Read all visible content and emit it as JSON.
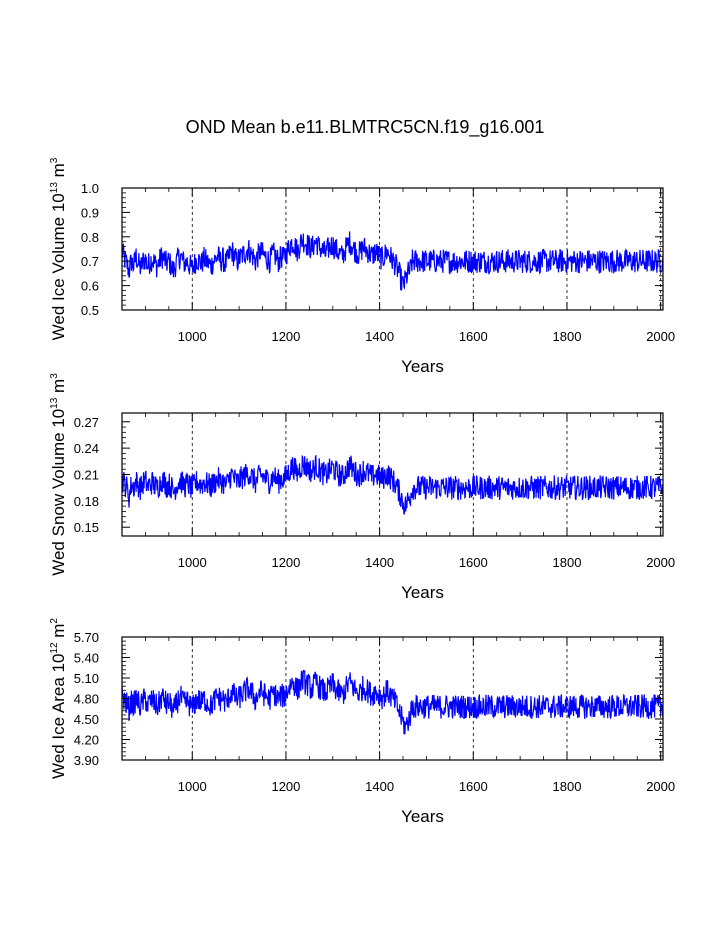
{
  "title": "OND Mean b.e11.BLMTRC5CN.f19_g16.001",
  "colors": {
    "series": "#0000ff",
    "axis": "#000000",
    "grid": "#000000"
  },
  "chart_data": [
    {
      "type": "line",
      "name": "ice-volume",
      "xlabel": "Years",
      "ylabel_prefix": "Wed Ice Volume 10",
      "ylabel_exp": "13",
      "ylabel_unit": " m",
      "ylabel_unit_exp": "3",
      "xlim": [
        850,
        2005
      ],
      "ylim": [
        0.5,
        1.0
      ],
      "xticks": [
        1000,
        1200,
        1400,
        1600,
        1800,
        2000
      ],
      "xtick_labels": [
        "1000",
        "1200",
        "1400",
        "1600",
        "1800",
        "2000"
      ],
      "yticks": [
        0.5,
        0.6,
        0.7,
        0.8,
        0.9,
        1.0
      ],
      "ytick_labels": [
        "0.5",
        "0.6",
        "0.7",
        "0.8",
        "0.9",
        "1.0"
      ],
      "grid_x": [
        1000,
        1200,
        1400,
        1600,
        1800,
        2000
      ],
      "series": [
        {
          "name": "ice volume",
          "x_start": 850,
          "x_step": 5,
          "values": [
            0.74,
            0.71,
            0.69,
            0.66,
            0.7,
            0.68,
            0.72,
            0.69,
            0.67,
            0.7,
            0.71,
            0.68,
            0.7,
            0.71,
            0.69,
            0.68,
            0.7,
            0.72,
            0.71,
            0.69,
            0.7,
            0.68,
            0.66,
            0.69,
            0.71,
            0.72,
            0.7,
            0.69,
            0.7,
            0.68,
            0.67,
            0.69,
            0.71,
            0.7,
            0.69,
            0.71,
            0.7,
            0.69,
            0.68,
            0.7,
            0.71,
            0.72,
            0.7,
            0.71,
            0.69,
            0.7,
            0.73,
            0.74,
            0.72,
            0.7,
            0.71,
            0.72,
            0.73,
            0.74,
            0.75,
            0.73,
            0.72,
            0.7,
            0.72,
            0.74,
            0.73,
            0.72,
            0.71,
            0.7,
            0.72,
            0.73,
            0.71,
            0.7,
            0.72,
            0.71,
            0.73,
            0.75,
            0.77,
            0.78,
            0.76,
            0.74,
            0.77,
            0.79,
            0.78,
            0.77,
            0.76,
            0.75,
            0.77,
            0.78,
            0.76,
            0.75,
            0.74,
            0.73,
            0.75,
            0.76,
            0.77,
            0.75,
            0.74,
            0.73,
            0.72,
            0.74,
            0.76,
            0.78,
            0.77,
            0.75,
            0.74,
            0.73,
            0.74,
            0.76,
            0.75,
            0.74,
            0.73,
            0.72,
            0.74,
            0.73,
            0.72,
            0.71,
            0.72,
            0.74,
            0.73,
            0.71,
            0.7,
            0.68,
            0.66,
            0.63,
            0.6,
            0.62,
            0.65,
            0.66,
            0.7
          ]
        }
      ]
    },
    {
      "type": "line",
      "name": "snow-volume",
      "xlabel": "Years",
      "ylabel_prefix": "Wed Snow Volume 10",
      "ylabel_exp": "13",
      "ylabel_unit": " m",
      "ylabel_unit_exp": "3",
      "xlim": [
        850,
        2005
      ],
      "ylim": [
        0.14,
        0.28
      ],
      "xticks": [
        1000,
        1200,
        1400,
        1600,
        1800,
        2000
      ],
      "xtick_labels": [
        "1000",
        "1200",
        "1400",
        "1600",
        "1800",
        "2000"
      ],
      "yticks": [
        0.15,
        0.18,
        0.21,
        0.24,
        0.27
      ],
      "ytick_labels": [
        "0.15",
        "0.18",
        "0.21",
        "0.24",
        "0.27"
      ],
      "grid_x": [
        1000,
        1200,
        1400,
        1600,
        1800,
        2000
      ],
      "series": [
        {
          "name": "snow volume",
          "x_start": 850,
          "x_step": 5,
          "values": [
            0.205,
            0.2,
            0.195,
            0.185,
            0.198,
            0.196,
            0.202,
            0.198,
            0.194,
            0.2,
            0.203,
            0.196,
            0.199,
            0.201,
            0.197,
            0.195,
            0.199,
            0.204,
            0.202,
            0.197,
            0.199,
            0.196,
            0.19,
            0.196,
            0.201,
            0.203,
            0.199,
            0.197,
            0.2,
            0.196,
            0.194,
            0.198,
            0.202,
            0.2,
            0.198,
            0.202,
            0.2,
            0.198,
            0.196,
            0.2,
            0.202,
            0.205,
            0.201,
            0.203,
            0.198,
            0.2,
            0.207,
            0.21,
            0.205,
            0.201,
            0.203,
            0.206,
            0.208,
            0.21,
            0.212,
            0.208,
            0.205,
            0.201,
            0.205,
            0.21,
            0.208,
            0.206,
            0.204,
            0.202,
            0.206,
            0.208,
            0.204,
            0.202,
            0.206,
            0.204,
            0.208,
            0.212,
            0.216,
            0.22,
            0.215,
            0.211,
            0.217,
            0.222,
            0.22,
            0.218,
            0.216,
            0.213,
            0.217,
            0.22,
            0.216,
            0.213,
            0.211,
            0.209,
            0.213,
            0.215,
            0.218,
            0.214,
            0.211,
            0.209,
            0.207,
            0.211,
            0.215,
            0.22,
            0.218,
            0.214,
            0.211,
            0.209,
            0.211,
            0.215,
            0.213,
            0.211,
            0.209,
            0.207,
            0.211,
            0.209,
            0.207,
            0.205,
            0.207,
            0.211,
            0.209,
            0.205,
            0.202,
            0.198,
            0.192,
            0.186,
            0.178,
            0.174,
            0.18,
            0.185,
            0.195
          ]
        }
      ]
    },
    {
      "type": "line",
      "name": "ice-area",
      "xlabel": "Years",
      "ylabel_prefix": "Wed Ice Area 10",
      "ylabel_exp": "12",
      "ylabel_unit": " m",
      "ylabel_unit_exp": "2",
      "xlim": [
        850,
        2005
      ],
      "ylim": [
        3.9,
        5.7
      ],
      "xticks": [
        1000,
        1200,
        1400,
        1600,
        1800,
        2000
      ],
      "xtick_labels": [
        "1000",
        "1200",
        "1400",
        "1600",
        "1800",
        "2000"
      ],
      "yticks": [
        3.9,
        4.2,
        4.5,
        4.8,
        5.1,
        5.4,
        5.7
      ],
      "ytick_labels": [
        "3.90",
        "4.20",
        "4.50",
        "4.80",
        "5.10",
        "5.40",
        "5.70"
      ],
      "grid_x": [
        1000,
        1200,
        1400,
        1600,
        1800,
        2000
      ],
      "series": [
        {
          "name": "ice area",
          "x_start": 850,
          "x_step": 5,
          "values": [
            4.85,
            4.78,
            4.72,
            4.65,
            4.75,
            4.7,
            4.8,
            4.74,
            4.68,
            4.76,
            4.8,
            4.7,
            4.75,
            4.78,
            4.72,
            4.68,
            4.74,
            4.82,
            4.79,
            4.71,
            4.74,
            4.69,
            4.6,
            4.7,
            4.78,
            4.82,
            4.75,
            4.72,
            4.76,
            4.7,
            4.66,
            4.72,
            4.8,
            4.77,
            4.73,
            4.79,
            4.76,
            4.72,
            4.69,
            4.75,
            4.79,
            4.84,
            4.78,
            4.81,
            4.74,
            4.76,
            4.86,
            4.9,
            4.84,
            4.78,
            4.81,
            4.85,
            4.88,
            4.92,
            4.95,
            4.89,
            4.85,
            4.78,
            4.84,
            4.91,
            4.88,
            4.85,
            4.82,
            4.79,
            4.85,
            4.88,
            4.82,
            4.79,
            4.85,
            4.82,
            4.88,
            4.94,
            5.0,
            5.05,
            4.98,
            4.92,
            5.01,
            5.08,
            5.04,
            5.01,
            4.98,
            4.94,
            5.0,
            5.04,
            4.98,
            4.94,
            4.91,
            4.88,
            4.94,
            4.97,
            5.01,
            4.95,
            4.91,
            4.88,
            4.85,
            4.91,
            4.97,
            5.04,
            5.01,
            4.95,
            4.91,
            4.88,
            4.91,
            4.97,
            4.94,
            4.91,
            4.88,
            4.85,
            4.91,
            4.88,
            4.85,
            4.82,
            4.85,
            4.91,
            4.88,
            4.82,
            4.78,
            4.72,
            4.64,
            4.55,
            4.45,
            4.38,
            4.46,
            4.55,
            4.68
          ]
        }
      ]
    }
  ]
}
